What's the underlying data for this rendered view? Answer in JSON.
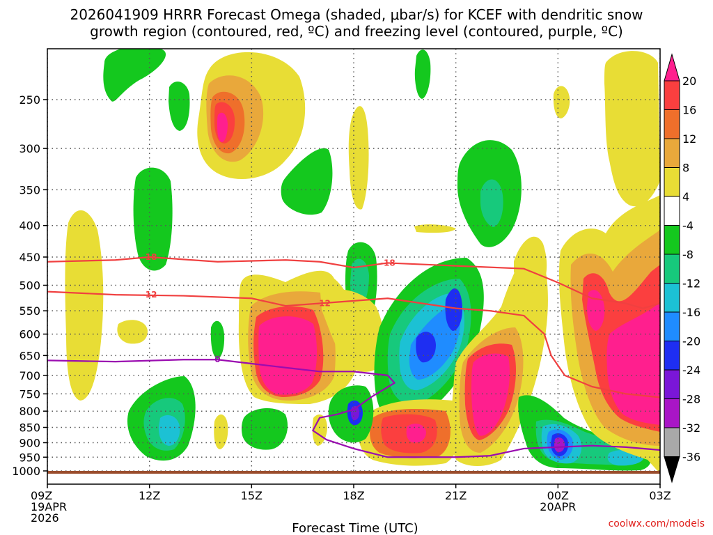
{
  "chart_data": {
    "type": "contour",
    "title_lines": [
      "2026041909 HRRR Forecast Omega (shaded, μbar/s) for KCEF with dendritic snow",
      "growth region (contoured, red, ºC) and freezing level (contoured, purple, ºC)"
    ],
    "xlabel": "Forecast Time (UTC)",
    "ylabel": "Pressure (hPa)",
    "credit": "coolwx.com/models",
    "x_ticks": [
      {
        "h": 0,
        "lines": [
          "09Z",
          "19APR",
          "2026"
        ]
      },
      {
        "h": 3,
        "lines": [
          "12Z"
        ]
      },
      {
        "h": 6,
        "lines": [
          "15Z"
        ]
      },
      {
        "h": 9,
        "lines": [
          "18Z"
        ]
      },
      {
        "h": 12,
        "lines": [
          "21Z"
        ]
      },
      {
        "h": 15,
        "lines": [
          "00Z",
          "20APR"
        ]
      },
      {
        "h": 18,
        "lines": [
          "03Z"
        ]
      }
    ],
    "y_ticks": [
      "250",
      "300",
      "350",
      "400",
      "450",
      "500",
      "550",
      "600",
      "650",
      "700",
      "750",
      "800",
      "850",
      "900",
      "950",
      "1000"
    ],
    "xlim_hours": [
      0,
      18
    ],
    "ylim_hpa": [
      1020,
      200
    ],
    "colorbar": {
      "labels": [
        "20",
        "16",
        "12",
        "8",
        "4",
        "-4",
        "-8",
        "-12",
        "-16",
        "-20",
        "-24",
        "-28",
        "-32",
        "-36"
      ],
      "colors": [
        "#ff1f8e",
        "#fb3f3f",
        "#ef6f2b",
        "#e9a83b",
        "#e8dd35",
        "#ffffff",
        "#14c81e",
        "#17c97c",
        "#1cc1d4",
        "#1f8cff",
        "#1e2ef2",
        "#7a16d8",
        "#a915c6",
        "#a9a9a9",
        "#000000"
      ]
    },
    "omega_features": [
      {
        "name": "upper-dipole",
        "h": 4.2,
        "p": 280,
        "value": 20
      },
      {
        "name": "midlevel-core-16Z",
        "h": 7.2,
        "p": 640,
        "value": 20
      },
      {
        "name": "lowlevel-core-20Z",
        "h": 10.5,
        "p": 870,
        "value": 20
      },
      {
        "name": "core-22Z",
        "h": 13.0,
        "p": 730,
        "value": 20
      },
      {
        "name": "core-02Z",
        "h": 17.2,
        "p": 650,
        "value": 20
      },
      {
        "name": "sink-21Z",
        "h": 12.0,
        "p": 560,
        "value": -28
      },
      {
        "name": "sink-20Z",
        "h": 11.0,
        "p": 640,
        "value": -24
      },
      {
        "name": "sink-18Z",
        "h": 9.0,
        "p": 800,
        "value": -24
      },
      {
        "name": "sink-00Z",
        "h": 15.0,
        "p": 910,
        "value": -32
      },
      {
        "name": "sink-13Z",
        "h": 3.0,
        "p": 830,
        "value": -16
      }
    ],
    "contours": [
      {
        "name": "-18",
        "color": "#f04040",
        "label": "-18",
        "points": [
          [
            0,
            458
          ],
          [
            2,
            455
          ],
          [
            3,
            450
          ],
          [
            5,
            458
          ],
          [
            7,
            455
          ],
          [
            8,
            458
          ],
          [
            9,
            468
          ],
          [
            10,
            460
          ],
          [
            12,
            465
          ],
          [
            14,
            470
          ],
          [
            15,
            495
          ],
          [
            16,
            525
          ],
          [
            17,
            535
          ],
          [
            17.5,
            545
          ],
          [
            18,
            535
          ]
        ]
      },
      {
        "name": "-12",
        "color": "#f04040",
        "label": "-12",
        "points": [
          [
            0,
            512
          ],
          [
            2,
            518
          ],
          [
            4,
            520
          ],
          [
            6,
            525
          ],
          [
            7,
            540
          ],
          [
            8,
            535
          ],
          [
            9,
            530
          ],
          [
            10,
            525
          ],
          [
            12,
            545
          ],
          [
            13,
            550
          ],
          [
            14,
            560
          ],
          [
            14.6,
            600
          ],
          [
            14.8,
            650
          ],
          [
            15.2,
            700
          ],
          [
            16,
            730
          ],
          [
            17,
            750
          ],
          [
            18,
            760
          ]
        ]
      },
      {
        "name": "0",
        "color": "#9a0cb0",
        "label": "0",
        "points": [
          [
            0,
            662
          ],
          [
            2,
            665
          ],
          [
            4,
            660
          ],
          [
            5,
            660
          ],
          [
            6,
            670
          ],
          [
            7,
            680
          ],
          [
            8,
            690
          ],
          [
            9,
            690
          ],
          [
            10,
            700
          ],
          [
            10.2,
            720
          ],
          [
            9.5,
            760
          ],
          [
            9,
            795
          ],
          [
            8.5,
            810
          ],
          [
            8,
            820
          ],
          [
            7.8,
            860
          ],
          [
            8.2,
            890
          ],
          [
            9,
            920
          ],
          [
            10,
            950
          ],
          [
            12,
            950
          ],
          [
            13,
            945
          ],
          [
            14,
            920
          ],
          [
            16,
            910
          ],
          [
            17,
            915
          ],
          [
            18,
            925
          ]
        ]
      }
    ]
  }
}
